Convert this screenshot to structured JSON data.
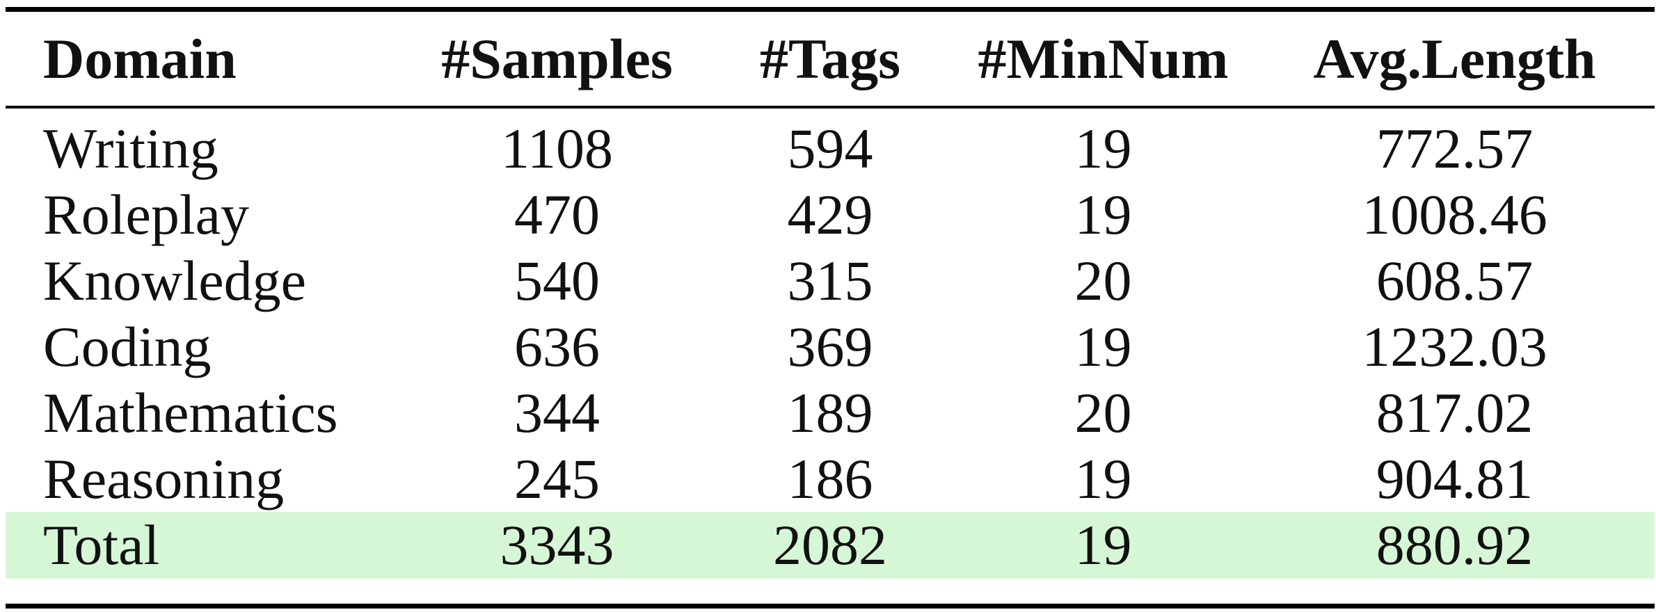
{
  "table": {
    "headers": [
      "Domain",
      "#Samples",
      "#Tags",
      "#MinNum",
      "Avg.Length"
    ],
    "rows": [
      [
        "Writing",
        "1108",
        "594",
        "19",
        "772.57"
      ],
      [
        "Roleplay",
        "470",
        "429",
        "19",
        "1008.46"
      ],
      [
        "Knowledge",
        "540",
        "315",
        "20",
        "608.57"
      ],
      [
        "Coding",
        "636",
        "369",
        "19",
        "1232.03"
      ],
      [
        "Mathematics",
        "344",
        "189",
        "20",
        "817.02"
      ],
      [
        "Reasoning",
        "245",
        "186",
        "19",
        "904.81"
      ]
    ],
    "total": [
      "Total",
      "3343",
      "2082",
      "19",
      "880.92"
    ],
    "colors": {
      "rule": "#000000",
      "total_highlight": "#d6f7d6",
      "text": "#111111"
    }
  }
}
